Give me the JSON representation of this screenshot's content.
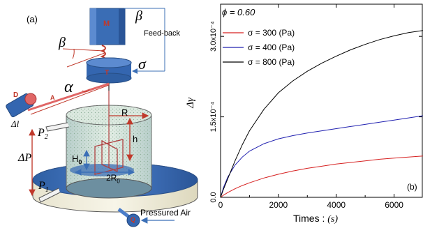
{
  "panel_a": {
    "panel_label": "(a)",
    "motor_label": "M",
    "transducer_label": "T",
    "laser_label": "D",
    "laser_beam_label": "A",
    "feedback_label": "Feed-back",
    "beta_top": "β",
    "beta_left": "β",
    "alpha_label": "α",
    "sigma_label": "σ",
    "delta_l_label": "Δl",
    "p2_label": "P",
    "p2_sub": "2",
    "delta_p_label": "ΔP",
    "p1_label": "P",
    "p1_sub": "1",
    "r_label": "R",
    "h_label": "h",
    "h0_label": "H",
    "h0_sub": "0",
    "two_r0_label": "2R",
    "two_r0_sub": "0",
    "pump_label": "Q",
    "air_label": "Pressured Air"
  },
  "panel_b": {
    "panel_label": "(b)"
  },
  "chart_data": {
    "type": "line",
    "annotation": "ϕ = 0.60",
    "xlabel": "Times",
    "xlabel_unit": "(s)",
    "ylabel": "Δγ",
    "xlim": [
      0,
      7000
    ],
    "ylim": [
      0,
      0.00036
    ],
    "x_ticks": [
      0,
      2000,
      4000,
      6000
    ],
    "x_tick_labels": [
      "0",
      "2000",
      "4000",
      "6000"
    ],
    "y_ticks": [
      0,
      0.00015,
      0.0003
    ],
    "y_tick_labels": [
      "0.0",
      "1.5x10⁻⁴",
      "3.0x10⁻⁴"
    ],
    "legend_position": "top-left",
    "grid": false,
    "series": [
      {
        "name": "σ = 300 (Pa)",
        "color": "#d62020",
        "x": [
          0,
          100,
          250,
          500,
          750,
          1000,
          1500,
          2000,
          2500,
          3000,
          3500,
          4000,
          4500,
          5000,
          5500,
          6000,
          6500,
          7000
        ],
        "y": [
          0,
          4e-06,
          9e-06,
          1.6e-05,
          2.2e-05,
          2.7e-05,
          3.6e-05,
          4.3e-05,
          4.9e-05,
          5.4e-05,
          5.8e-05,
          6.2e-05,
          6.5e-05,
          6.8e-05,
          7.1e-05,
          7.3e-05,
          7.5e-05,
          7.7e-05
        ]
      },
      {
        "name": "σ = 400 (Pa)",
        "color": "#2020b0",
        "x": [
          0,
          100,
          250,
          500,
          750,
          1000,
          1500,
          2000,
          2500,
          3000,
          3500,
          4000,
          4500,
          5000,
          5500,
          6000,
          6500,
          7000
        ],
        "y": [
          0,
          1.8e-05,
          3.8e-05,
          6e-05,
          7.5e-05,
          8.6e-05,
          0.0001,
          0.000109,
          0.000115,
          0.00012,
          0.000124,
          0.000128,
          0.000132,
          0.000136,
          0.00014,
          0.000144,
          0.000148,
          0.000152
        ]
      },
      {
        "name": "σ = 800 (Pa)",
        "color": "#000000",
        "x": [
          0,
          100,
          250,
          500,
          750,
          1000,
          1500,
          2000,
          2500,
          3000,
          3500,
          4000,
          4500,
          5000,
          5500,
          6000,
          6500,
          7000
        ],
        "y": [
          0,
          1.5e-05,
          3.5e-05,
          6.8e-05,
          9.8e-05,
          0.000124,
          0.000164,
          0.000195,
          0.000217,
          0.000235,
          0.00025,
          0.000263,
          0.000275,
          0.000285,
          0.000294,
          0.000301,
          0.000307,
          0.000311
        ]
      }
    ]
  }
}
